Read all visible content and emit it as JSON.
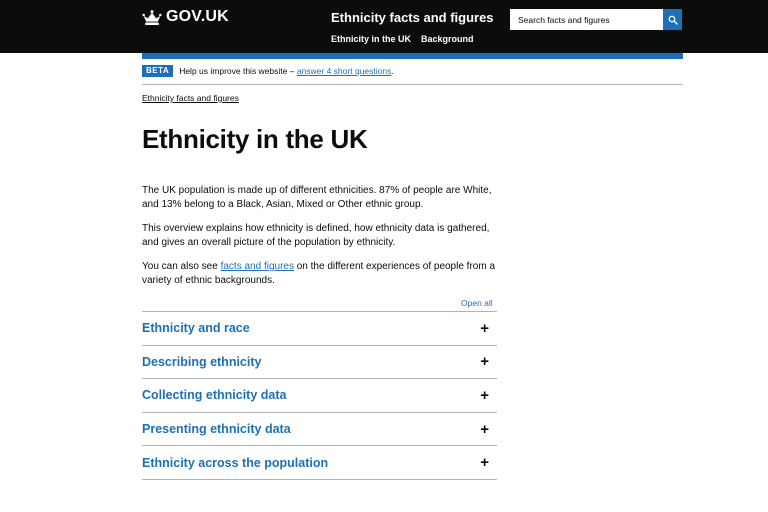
{
  "header": {
    "logo_text": "GOV.UK",
    "service_name": "Ethnicity facts and figures",
    "nav": [
      {
        "label": "Ethnicity in the UK"
      },
      {
        "label": "Background"
      }
    ],
    "search_placeholder": "Search facts and figures"
  },
  "beta": {
    "tag": "BETA",
    "text": "Help us improve this website – ",
    "link": "answer 4 short questions",
    "after": "."
  },
  "breadcrumb": {
    "label": "Ethnicity facts and figures"
  },
  "page": {
    "title": "Ethnicity in the UK",
    "p1": "The UK population is made up of different ethnicities. 87% of people are White, and 13% belong to a Black, Asian, Mixed or Other ethnic group.",
    "p2": "This overview explains how ethnicity is defined, how ethnicity data is gathered, and gives an overall picture of the population by ethnicity.",
    "p3_before": "You can also see ",
    "p3_link": "facts and figures",
    "p3_after": " on the different experiences of people from a variety of ethnic backgrounds."
  },
  "accordion": {
    "open_all": "Open all",
    "items": [
      {
        "label": "Ethnicity and race",
        "icon": "+"
      },
      {
        "label": "Describing ethnicity",
        "icon": "+"
      },
      {
        "label": "Collecting ethnicity data",
        "icon": "+"
      },
      {
        "label": "Presenting ethnicity data",
        "icon": "+"
      },
      {
        "label": "Ethnicity across the population",
        "icon": "+"
      }
    ]
  },
  "colors": {
    "header_bg": "#0b0c0c",
    "brand_blue": "#1d70b8",
    "text": "#0b0c0c",
    "border": "#b1b4b6"
  },
  "icons": [
    "crown-icon",
    "search-icon",
    "plus-icon"
  ]
}
